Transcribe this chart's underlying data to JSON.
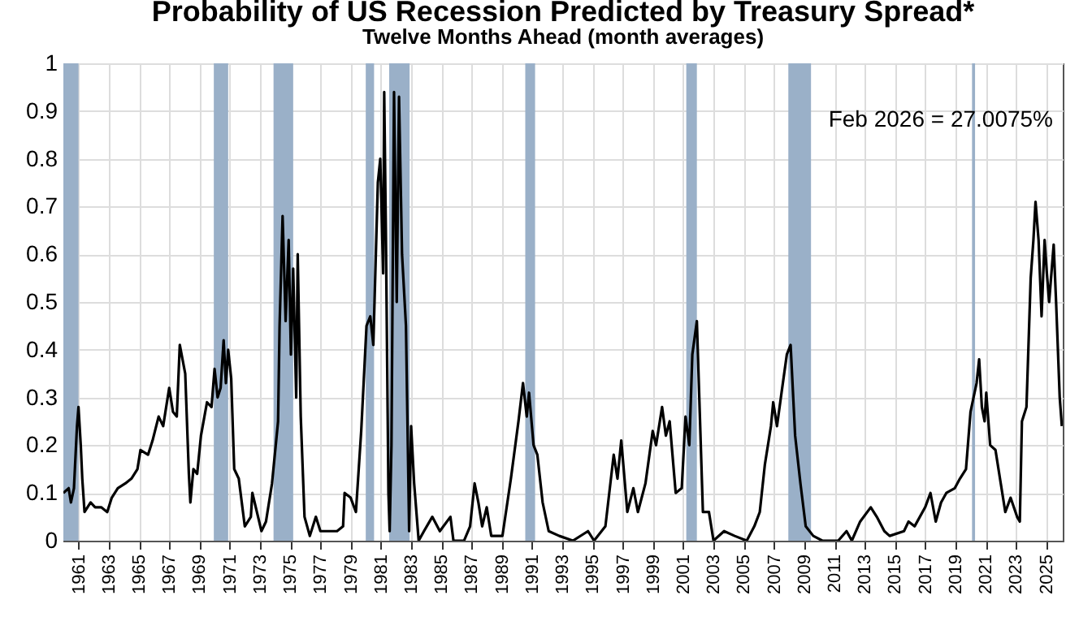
{
  "chart_data": {
    "type": "line",
    "title": "Probability of US Recession Predicted by Treasury Spread*",
    "subtitle": "Twelve Months Ahead (month averages)",
    "x": [
      1960.0,
      1960.35,
      1960.5,
      1960.7,
      1960.9,
      1961.0,
      1961.15,
      1961.25,
      1961.4,
      1961.8,
      1962.1,
      1962.5,
      1962.9,
      1963.2,
      1963.6,
      1964.1,
      1964.5,
      1964.9,
      1965.1,
      1965.6,
      1965.9,
      1966.3,
      1966.6,
      1967.0,
      1967.25,
      1967.5,
      1967.7,
      1968.06,
      1968.3,
      1968.4,
      1968.6,
      1968.85,
      1969.1,
      1969.5,
      1969.8,
      1970.0,
      1970.2,
      1970.4,
      1970.6,
      1970.75,
      1970.9,
      1971.1,
      1971.3,
      1971.6,
      1972.0,
      1972.4,
      1972.5,
      1972.8,
      1973.1,
      1973.4,
      1973.8,
      1974.2,
      1974.3,
      1974.5,
      1974.7,
      1974.9,
      1975.05,
      1975.2,
      1975.4,
      1975.5,
      1975.7,
      1975.95,
      1976.3,
      1976.7,
      1977.0,
      1977.6,
      1978.1,
      1978.5,
      1978.6,
      1979.0,
      1979.35,
      1979.7,
      1980.05,
      1980.3,
      1980.5,
      1980.8,
      1980.96,
      1981.15,
      1981.22,
      1981.33,
      1981.5,
      1981.58,
      1981.7,
      1981.87,
      1982.05,
      1982.2,
      1982.4,
      1982.66,
      1982.87,
      1983.0,
      1983.2,
      1983.5,
      1983.85,
      1984.4,
      1984.9,
      1985.6,
      1985.8,
      1986.5,
      1986.9,
      1987.2,
      1987.45,
      1987.7,
      1988.0,
      1988.3,
      1989.04,
      1989.6,
      1990.1,
      1990.4,
      1990.65,
      1990.8,
      1991.1,
      1991.35,
      1991.7,
      1992.1,
      1992.8,
      1993.7,
      1994.7,
      1995.1,
      1995.85,
      1996.4,
      1996.65,
      1996.9,
      1997.3,
      1997.7,
      1998.0,
      1998.5,
      1998.98,
      1999.2,
      1999.6,
      1999.85,
      2000.1,
      2000.5,
      2000.9,
      2001.15,
      2001.4,
      2001.6,
      2001.9,
      2002.3,
      2002.7,
      2003.0,
      2003.7,
      2004.4,
      2005.2,
      2005.7,
      2006.06,
      2006.4,
      2006.8,
      2006.95,
      2007.2,
      2007.5,
      2007.85,
      2008.1,
      2008.4,
      2008.75,
      2009.1,
      2009.6,
      2010.2,
      2011.25,
      2011.8,
      2012.15,
      2012.7,
      2013.4,
      2013.8,
      2014.3,
      2014.65,
      2015.6,
      2015.9,
      2016.3,
      2017.0,
      2017.35,
      2017.7,
      2018.05,
      2018.4,
      2018.96,
      2019.3,
      2019.7,
      2020.0,
      2020.4,
      2020.57,
      2020.75,
      2020.93,
      2021.04,
      2021.3,
      2021.65,
      2022.0,
      2022.3,
      2022.65,
      2023.08,
      2023.26,
      2023.4,
      2023.7,
      2023.98,
      2024.16,
      2024.3,
      2024.5,
      2024.7,
      2024.9,
      2025.05,
      2025.2,
      2025.5,
      2025.66,
      2025.9,
      2026.04
    ],
    "series": [
      {
        "color": "#000000",
        "values": [
          0.1,
          0.11,
          0.08,
          0.11,
          0.24,
          0.28,
          0.2,
          0.13,
          0.06,
          0.08,
          0.07,
          0.07,
          0.06,
          0.09,
          0.11,
          0.12,
          0.13,
          0.15,
          0.19,
          0.18,
          0.21,
          0.26,
          0.24,
          0.32,
          0.27,
          0.26,
          0.41,
          0.35,
          0.14,
          0.08,
          0.15,
          0.14,
          0.22,
          0.29,
          0.28,
          0.36,
          0.3,
          0.32,
          0.42,
          0.33,
          0.4,
          0.34,
          0.15,
          0.13,
          0.03,
          0.05,
          0.1,
          0.06,
          0.02,
          0.04,
          0.12,
          0.25,
          0.45,
          0.68,
          0.46,
          0.63,
          0.39,
          0.57,
          0.3,
          0.6,
          0.26,
          0.05,
          0.01,
          0.05,
          0.02,
          0.02,
          0.02,
          0.03,
          0.1,
          0.09,
          0.06,
          0.23,
          0.45,
          0.47,
          0.41,
          0.75,
          0.8,
          0.56,
          0.94,
          0.65,
          0.1,
          0.02,
          0.2,
          0.94,
          0.5,
          0.93,
          0.6,
          0.45,
          0.02,
          0.24,
          0.12,
          0.0,
          0.02,
          0.05,
          0.02,
          0.05,
          0.0,
          0.0,
          0.03,
          0.12,
          0.08,
          0.03,
          0.07,
          0.01,
          0.01,
          0.13,
          0.25,
          0.33,
          0.26,
          0.31,
          0.2,
          0.18,
          0.08,
          0.02,
          0.01,
          0.0,
          0.02,
          0.0,
          0.03,
          0.18,
          0.13,
          0.21,
          0.06,
          0.11,
          0.06,
          0.12,
          0.23,
          0.2,
          0.28,
          0.22,
          0.25,
          0.1,
          0.11,
          0.26,
          0.2,
          0.39,
          0.46,
          0.06,
          0.06,
          0.0,
          0.02,
          0.01,
          0.0,
          0.03,
          0.06,
          0.16,
          0.24,
          0.29,
          0.24,
          0.31,
          0.39,
          0.41,
          0.22,
          0.12,
          0.03,
          0.01,
          0.0,
          0.0,
          0.02,
          0.0,
          0.04,
          0.07,
          0.05,
          0.02,
          0.01,
          0.02,
          0.04,
          0.03,
          0.07,
          0.1,
          0.04,
          0.08,
          0.1,
          0.11,
          0.13,
          0.15,
          0.27,
          0.33,
          0.38,
          0.28,
          0.25,
          0.31,
          0.2,
          0.19,
          0.12,
          0.06,
          0.09,
          0.05,
          0.04,
          0.25,
          0.28,
          0.55,
          0.63,
          0.71,
          0.63,
          0.47,
          0.63,
          0.56,
          0.5,
          0.62,
          0.5,
          0.3,
          0.24
        ]
      }
    ],
    "xlim": [
      1960.0,
      2026.1
    ],
    "xticks": [
      1961,
      1963,
      1965,
      1967,
      1969,
      1971,
      1973,
      1975,
      1977,
      1979,
      1981,
      1983,
      1985,
      1987,
      1989,
      1991,
      1993,
      1995,
      1997,
      1999,
      2001,
      2003,
      2005,
      2007,
      2009,
      2011,
      2013,
      2015,
      2017,
      2019,
      2021,
      2023,
      2025
    ],
    "ylim": [
      0,
      1
    ],
    "yticks": [
      0,
      0.1,
      0.2,
      0.3,
      0.4,
      0.5,
      0.6,
      0.7,
      0.8,
      0.9,
      1
    ],
    "grid": true,
    "bands": [
      {
        "axis": "x",
        "from": 1960.0,
        "to": 1961.0,
        "color": "#9ab0c8"
      },
      {
        "axis": "x",
        "from": 1969.95,
        "to": 1970.9,
        "color": "#9ab0c8"
      },
      {
        "axis": "x",
        "from": 1973.9,
        "to": 1975.2,
        "color": "#9ab0c8"
      },
      {
        "axis": "x",
        "from": 1980.0,
        "to": 1980.55,
        "color": "#9ab0c8"
      },
      {
        "axis": "x",
        "from": 1981.55,
        "to": 1982.9,
        "color": "#9ab0c8"
      },
      {
        "axis": "x",
        "from": 1990.55,
        "to": 1991.2,
        "color": "#9ab0c8"
      },
      {
        "axis": "x",
        "from": 2001.2,
        "to": 2001.9,
        "color": "#9ab0c8"
      },
      {
        "axis": "x",
        "from": 2007.95,
        "to": 2009.45,
        "color": "#9ab0c8"
      },
      {
        "axis": "x",
        "from": 2020.1,
        "to": 2020.3,
        "color": "#9ab0c8"
      }
    ],
    "annotations": [
      "Feb 2026 = 27.0075%"
    ]
  }
}
